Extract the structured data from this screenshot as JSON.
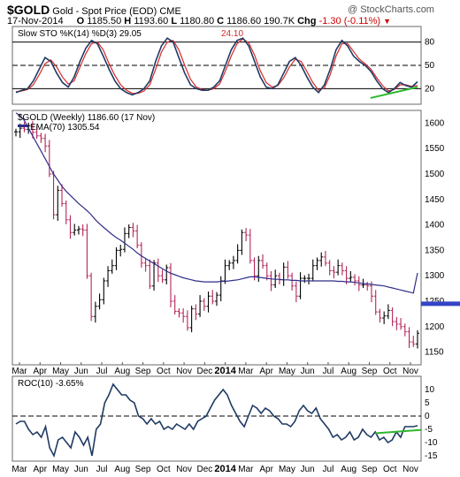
{
  "header": {
    "symbol": "$GOLD",
    "name": "Gold - Spot Price (EOD)",
    "exchange": "CME",
    "watermark": "@ StockCharts.com",
    "date": "17-Nov-2014",
    "ohlc_o_label": "O",
    "ohlc_o": "1185.50",
    "ohlc_h_label": "H",
    "ohlc_h": "1193.60",
    "ohlc_l_label": "L",
    "ohlc_l": "1180.80",
    "ohlc_c_label": "C",
    "ohlc_c": "1186.60",
    "volume": "190.7K",
    "chg_label": "Chg",
    "chg": "-1.30 (-0.11%)",
    "chg_color": "#cc0000"
  },
  "x_axis": {
    "labels": [
      "Mar",
      "Apr",
      "May",
      "Jun",
      "Jul",
      "Aug",
      "Sep",
      "Oct",
      "Nov",
      "Dec",
      "2014",
      "Mar",
      "Apr",
      "May",
      "Jun",
      "Jul",
      "Aug",
      "Sep",
      "Oct",
      "Nov"
    ]
  },
  "colors": {
    "price_up": "#000000",
    "price_down": "#b5255c",
    "ema": "#2e2e8a",
    "sto_k": "#1f3a63",
    "sto_d": "#d62828",
    "roc": "#1f3a63",
    "blue_line": "#3444c8",
    "green_line": "#2db82d"
  },
  "chart_data": [
    {
      "type": "line",
      "title": "Slow STO %K(14) %D(3)",
      "legend": [
        "Slow STO %K(14) %D(3) 29.05",
        "24.10"
      ],
      "series": [
        {
          "name": "%K",
          "values": [
            15,
            18,
            20,
            30,
            45,
            60,
            55,
            40,
            28,
            22,
            35,
            55,
            72,
            82,
            78,
            62,
            45,
            30,
            20,
            15,
            12,
            15,
            20,
            30,
            55,
            75,
            85,
            80,
            60,
            40,
            25,
            20,
            18,
            18,
            22,
            30,
            50,
            70,
            82,
            85,
            75,
            55,
            35,
            22,
            20,
            25,
            40,
            55,
            60,
            50,
            35,
            22,
            15,
            25,
            45,
            70,
            82,
            75,
            62,
            55,
            50,
            42,
            30,
            20,
            15,
            20,
            28,
            24,
            22,
            29
          ]
        },
        {
          "name": "%D",
          "values": [
            16,
            17,
            19,
            25,
            38,
            52,
            57,
            48,
            35,
            26,
            30,
            48,
            65,
            78,
            80,
            70,
            52,
            37,
            25,
            18,
            14,
            14,
            17,
            25,
            45,
            67,
            80,
            82,
            70,
            50,
            32,
            22,
            19,
            18,
            20,
            26,
            43,
            62,
            78,
            84,
            79,
            63,
            43,
            28,
            22,
            24,
            34,
            48,
            58,
            55,
            42,
            28,
            18,
            21,
            38,
            62,
            78,
            78,
            68,
            58,
            52,
            45,
            34,
            24,
            17,
            19,
            25,
            25,
            23,
            24
          ]
        }
      ],
      "ylim": [
        0,
        100
      ],
      "y_ticks": [
        20,
        50,
        80
      ],
      "ref_lines": [
        20,
        50,
        80
      ]
    },
    {
      "type": "line",
      "title": "$GOLD (Weekly)",
      "legend": [
        "$GOLD (Weekly) 1186.60 (17 Nov)",
        "EMA(70) 1305.54"
      ],
      "ylim": [
        1125,
        1625
      ],
      "y_ticks": [
        1150,
        1200,
        1250,
        1300,
        1350,
        1400,
        1450,
        1500,
        1550,
        1600
      ],
      "price_close": [
        1583,
        1590,
        1588,
        1595,
        1582,
        1575,
        1570,
        1555,
        1500,
        1420,
        1468,
        1442,
        1410,
        1385,
        1390,
        1392,
        1390,
        1300,
        1220,
        1240,
        1253,
        1290,
        1310,
        1320,
        1350,
        1352,
        1383,
        1395,
        1388,
        1360,
        1325,
        1320,
        1280,
        1325,
        1300,
        1292,
        1316,
        1250,
        1230,
        1227,
        1220,
        1198,
        1235,
        1225,
        1250,
        1240,
        1260,
        1250,
        1262,
        1290,
        1320,
        1325,
        1330,
        1350,
        1385,
        1380,
        1330,
        1300,
        1330,
        1320,
        1300,
        1282,
        1300,
        1292,
        1317,
        1300,
        1280,
        1260,
        1295,
        1295,
        1295,
        1320,
        1330,
        1337,
        1325,
        1310,
        1307,
        1320,
        1310,
        1295,
        1297,
        1290,
        1282,
        1282,
        1280,
        1260,
        1229,
        1217,
        1221,
        1232,
        1210,
        1205,
        1200,
        1190,
        1170,
        1166,
        1187
      ],
      "ema_70": [
        1620,
        1615,
        1605,
        1590,
        1575,
        1560,
        1545,
        1530,
        1515,
        1500,
        1488,
        1476,
        1466,
        1458,
        1450,
        1442,
        1435,
        1428,
        1420,
        1410,
        1402,
        1395,
        1388,
        1381,
        1375,
        1370,
        1364,
        1358,
        1352,
        1345,
        1339,
        1334,
        1329,
        1324,
        1319,
        1314,
        1309,
        1305,
        1302,
        1299,
        1296,
        1294,
        1292,
        1290,
        1289,
        1288,
        1288,
        1288,
        1288,
        1289,
        1289,
        1290,
        1291,
        1292,
        1294,
        1296,
        1298,
        1298,
        1297,
        1296,
        1295,
        1294,
        1293,
        1293,
        1292,
        1292,
        1291,
        1291,
        1290,
        1290,
        1290,
        1290,
        1290,
        1290,
        1290,
        1290,
        1290,
        1289,
        1289,
        1288,
        1288,
        1287,
        1286,
        1285,
        1284,
        1283,
        1282,
        1281,
        1280,
        1278,
        1276,
        1274,
        1272,
        1270,
        1268,
        1266,
        1305.54
      ],
      "annotations": [
        {
          "type": "horizontal-line",
          "value": 1245,
          "from_index": 48,
          "to_index": 68
        },
        {
          "type": "ema",
          "name": "EMA(70)"
        }
      ]
    },
    {
      "type": "line",
      "title": "ROC(10)",
      "legend": [
        "ROC(10) -3.65%"
      ],
      "ylim": [
        -17,
        15
      ],
      "y_ticks": [
        10,
        5,
        0,
        -5,
        -10,
        -15
      ],
      "ref_lines": [
        0
      ],
      "values": [
        -3,
        -2,
        -2,
        -5,
        -7,
        -6,
        -8,
        -4,
        -12,
        -15,
        -9,
        -8,
        -10,
        -12,
        -6,
        -8,
        -11,
        -8,
        -15,
        -5,
        -3,
        5,
        8,
        12,
        10,
        8,
        8,
        6,
        5,
        0,
        -1,
        -3,
        -1,
        -3,
        -2,
        -5,
        -4,
        -5,
        -3,
        -4,
        -5,
        -3,
        -5,
        -2,
        -1,
        0,
        3,
        6,
        8,
        10,
        8,
        4,
        1,
        -2,
        -4,
        0,
        4,
        3,
        1,
        3,
        2,
        0,
        -1,
        -3,
        -3,
        -4,
        -2,
        2,
        4,
        2,
        1,
        3,
        -1,
        -3,
        -5,
        -8,
        -7,
        -9,
        -8,
        -6,
        -9,
        -8,
        -5,
        -7,
        -8,
        -6,
        -9,
        -8,
        -10,
        -9,
        -6,
        -8,
        -4,
        -4,
        -4,
        -3.65
      ],
      "annotations": [
        {
          "type": "trend-line",
          "color": "green",
          "from_index": 85,
          "to_index": 96
        }
      ]
    }
  ]
}
